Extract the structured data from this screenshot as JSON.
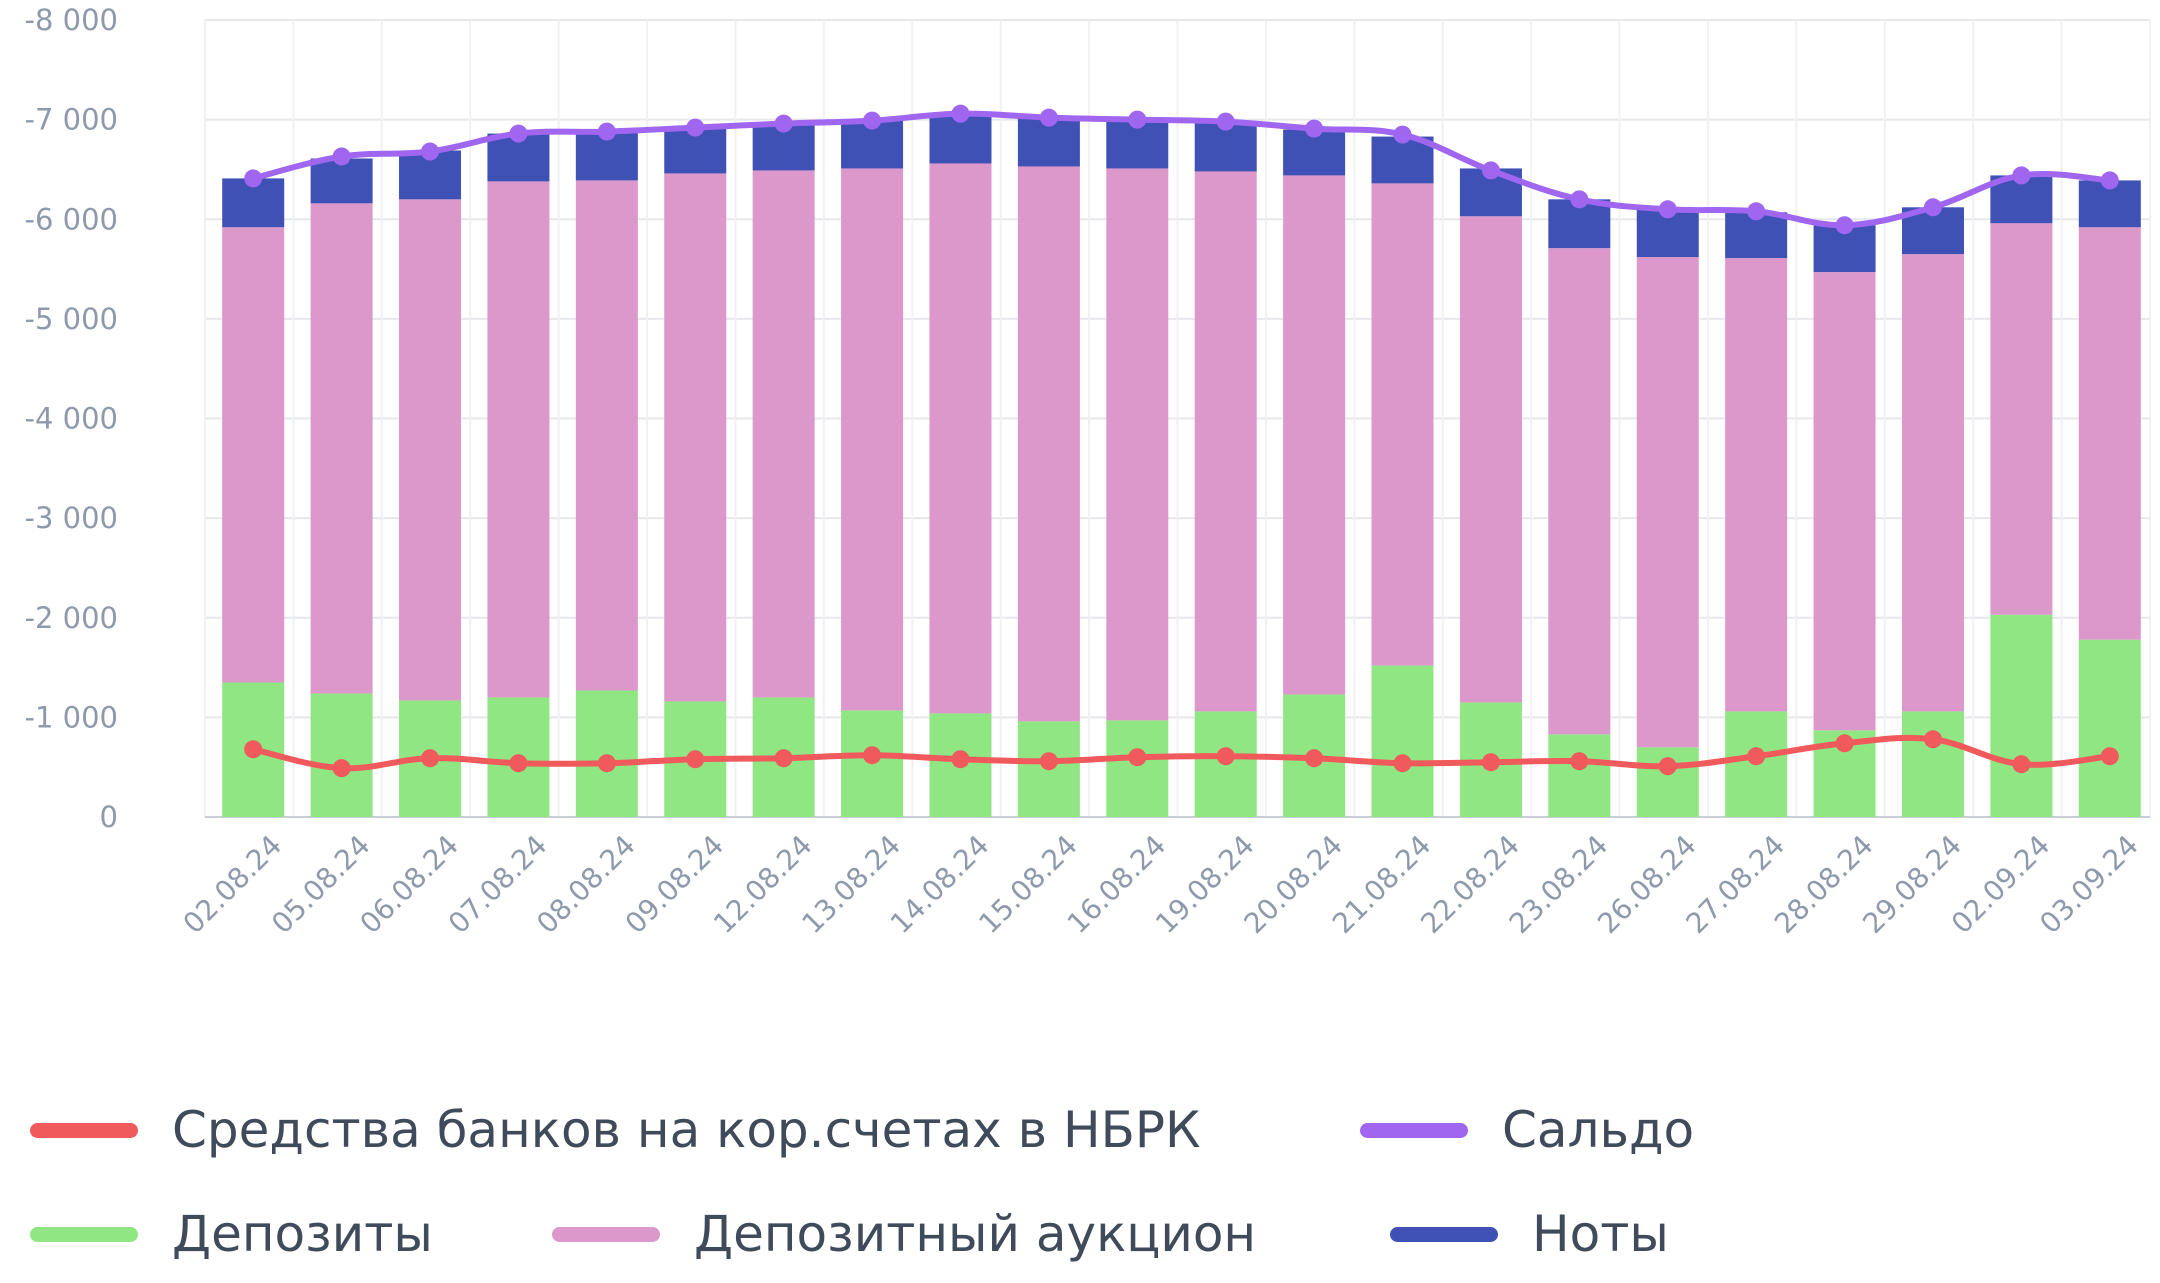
{
  "chart_data": {
    "type": "bar",
    "stacked": true,
    "y_axis_inverted": true,
    "ylim": [
      0,
      -8000
    ],
    "yticks": [
      0,
      -1000,
      -2000,
      -3000,
      -4000,
      -5000,
      -6000,
      -7000,
      -8000
    ],
    "ytick_labels": [
      "0",
      "-1 000",
      "-2 000",
      "-3 000",
      "-4 000",
      "-5 000",
      "-6 000",
      "-7 000",
      "-8 000"
    ],
    "grid": true,
    "legend_position": "bottom",
    "categories": [
      "02.08.24",
      "05.08.24",
      "06.08.24",
      "07.08.24",
      "08.08.24",
      "09.08.24",
      "12.08.24",
      "13.08.24",
      "14.08.24",
      "15.08.24",
      "16.08.24",
      "19.08.24",
      "20.08.24",
      "21.08.24",
      "22.08.24",
      "23.08.24",
      "26.08.24",
      "27.08.24",
      "28.08.24",
      "29.08.24",
      "02.09.24",
      "03.09.24"
    ],
    "series": [
      {
        "name": "Депозиты",
        "type": "bar",
        "color": "#90e683",
        "values": [
          -1350,
          -1240,
          -1170,
          -1200,
          -1270,
          -1160,
          -1200,
          -1070,
          -1040,
          -960,
          -970,
          -1060,
          -1230,
          -1520,
          -1150,
          -830,
          -700,
          -1060,
          -870,
          -1060,
          -2030,
          -1780
        ]
      },
      {
        "name": "Депозитный аукцион",
        "type": "bar",
        "color": "#dc97cb",
        "values": [
          -4570,
          -4920,
          -5030,
          -5180,
          -5120,
          -5300,
          -5290,
          -5440,
          -5520,
          -5570,
          -5540,
          -5420,
          -5210,
          -4840,
          -4880,
          -4880,
          -4920,
          -4550,
          -4600,
          -4590,
          -3930,
          -4140
        ]
      },
      {
        "name": "Ноты",
        "type": "bar",
        "color": "#4051b5",
        "values": [
          -490,
          -450,
          -490,
          -480,
          -490,
          -460,
          -460,
          -490,
          -480,
          -490,
          -490,
          -490,
          -460,
          -470,
          -480,
          -490,
          -480,
          -460,
          -470,
          -470,
          -480,
          -470
        ]
      },
      {
        "name": "Сальдо",
        "type": "line",
        "color": "#a066f0",
        "values": [
          -6410,
          -6630,
          -6680,
          -6860,
          -6880,
          -6920,
          -6960,
          -6990,
          -7060,
          -7020,
          -7000,
          -6980,
          -6910,
          -6850,
          -6490,
          -6200,
          -6100,
          -6080,
          -5940,
          -6120,
          -6440,
          -6390
        ]
      },
      {
        "name": "Средства банков на кор.счетах в НБРК",
        "type": "line",
        "color": "#f05a5c",
        "values": [
          -680,
          -490,
          -590,
          -540,
          -540,
          -580,
          -590,
          -620,
          -580,
          -560,
          -600,
          -610,
          -590,
          -540,
          -550,
          -560,
          -510,
          -610,
          -740,
          -780,
          -530,
          -610
        ]
      }
    ]
  },
  "legend": {
    "items": [
      {
        "label": "Средства банков на кор.счетах в НБРК",
        "color": "#f05a5c"
      },
      {
        "label": "Сальдо",
        "color": "#a066f0"
      },
      {
        "label": "Депозиты",
        "color": "#90e683"
      },
      {
        "label": "Депозитный аукцион",
        "color": "#dc97cb"
      },
      {
        "label": "Ноты",
        "color": "#4051b5"
      }
    ]
  }
}
